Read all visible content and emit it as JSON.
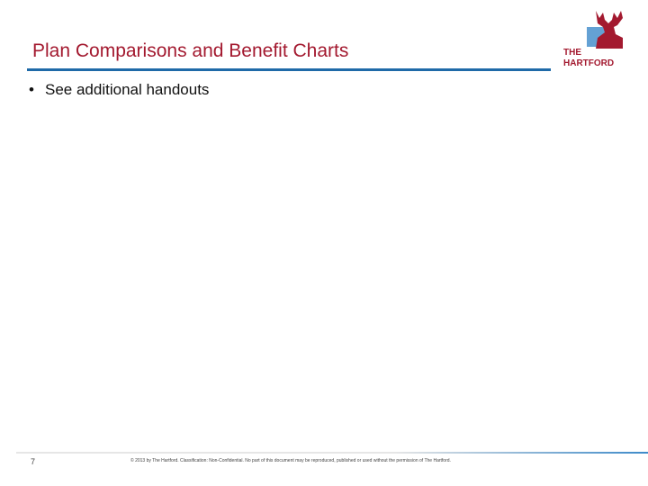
{
  "header": {
    "title": "Plan Comparisons and Benefit Charts"
  },
  "bullets": [
    "See additional handouts"
  ],
  "logo": {
    "line1": "THE",
    "line2": "HARTFORD"
  },
  "footer": {
    "page_number": "7",
    "copyright": "© 2013 by The Hartford. Classification: Non-Confidential. No part of this document may be reproduced, published or used without the permission of The Hartford."
  }
}
